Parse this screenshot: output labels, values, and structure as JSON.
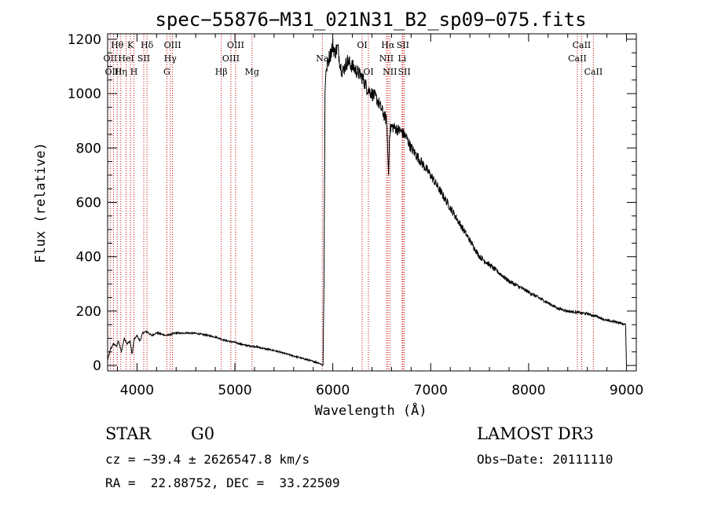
{
  "chart_data": {
    "type": "line",
    "title": "spec−55876−M31_021N31_B2_sp09−075.fits",
    "xlabel": "Wavelength (Å)",
    "ylabel": "Flux (relative)",
    "xlim": [
      3700,
      9100
    ],
    "ylim": [
      -20,
      1220
    ],
    "xticks": [
      4000,
      5000,
      6000,
      7000,
      8000,
      9000
    ],
    "xtick_labels": [
      "4000",
      "5000",
      "6000",
      "7000",
      "8000",
      "9000"
    ],
    "yticks": [
      0,
      200,
      400,
      600,
      800,
      1000,
      1200
    ],
    "ytick_labels": [
      "0",
      "200",
      "400",
      "600",
      "800",
      "1000",
      "1200"
    ],
    "series": [
      {
        "name": "flux",
        "x": [
          3700,
          3730,
          3760,
          3790,
          3810,
          3840,
          3870,
          3900,
          3930,
          3950,
          3970,
          4000,
          4030,
          4060,
          4100,
          4150,
          4200,
          4250,
          4300,
          4350,
          4400,
          4450,
          4500,
          4600,
          4700,
          4800,
          4900,
          5000,
          5100,
          5200,
          5300,
          5400,
          5500,
          5600,
          5700,
          5800,
          5850,
          5880,
          5900,
          5910,
          5920,
          5930,
          5940,
          5960,
          5980,
          6000,
          6020,
          6050,
          6080,
          6100,
          6150,
          6200,
          6250,
          6300,
          6350,
          6400,
          6450,
          6500,
          6550,
          6570,
          6580,
          6600,
          6650,
          6700,
          6750,
          6800,
          6900,
          7000,
          7100,
          7200,
          7300,
          7400,
          7500,
          7600,
          7700,
          7800,
          7900,
          8000,
          8100,
          8200,
          8300,
          8400,
          8500,
          8600,
          8700,
          8800,
          8900,
          8990,
          9000
        ],
        "y": [
          20,
          60,
          80,
          70,
          90,
          50,
          100,
          80,
          90,
          40,
          95,
          110,
          90,
          120,
          125,
          110,
          120,
          115,
          110,
          115,
          120,
          118,
          120,
          118,
          112,
          105,
          92,
          85,
          75,
          70,
          62,
          55,
          45,
          35,
          25,
          15,
          10,
          5,
          0,
          300,
          1000,
          1080,
          1100,
          1130,
          1150,
          1180,
          1150,
          1170,
          1100,
          1080,
          1120,
          1100,
          1080,
          1060,
          1020,
          1000,
          980,
          940,
          900,
          700,
          860,
          880,
          870,
          860,
          840,
          800,
          750,
          700,
          640,
          580,
          520,
          460,
          400,
          370,
          340,
          310,
          290,
          270,
          250,
          230,
          210,
          200,
          195,
          190,
          180,
          165,
          160,
          150,
          0
        ]
      }
    ],
    "spectral_lines": [
      {
        "name": "Hθ",
        "wavelength": 3798,
        "row": 1
      },
      {
        "name": "OII",
        "wavelength": 3727,
        "row": 2
      },
      {
        "name": "OIII",
        "wavelength": 3760,
        "row": 3
      },
      {
        "name": "K",
        "wavelength": 3934,
        "row": 1
      },
      {
        "name": "HeI",
        "wavelength": 3889,
        "row": 2
      },
      {
        "name": "Hη",
        "wavelength": 3835,
        "row": 3
      },
      {
        "name": "SII",
        "wavelength": 4069,
        "row": 2
      },
      {
        "name": "H",
        "wavelength": 3969,
        "row": 3
      },
      {
        "name": "Hδ",
        "wavelength": 4102,
        "row": 1
      },
      {
        "name": "OIII",
        "wavelength": 4363,
        "row": 1
      },
      {
        "name": "Hγ",
        "wavelength": 4340,
        "row": 2
      },
      {
        "name": "G",
        "wavelength": 4305,
        "row": 3
      },
      {
        "name": "OIII",
        "wavelength": 5007,
        "row": 1
      },
      {
        "name": "OIII",
        "wavelength": 4959,
        "row": 2
      },
      {
        "name": "Hβ",
        "wavelength": 4861,
        "row": 3
      },
      {
        "name": "Mg",
        "wavelength": 5175,
        "row": 3
      },
      {
        "name": "Na",
        "wavelength": 5893,
        "row": 2
      },
      {
        "name": "OI",
        "wavelength": 6300,
        "row": 1
      },
      {
        "name": "OI",
        "wavelength": 6364,
        "row": 3
      },
      {
        "name": "Hα",
        "wavelength": 6563,
        "row": 1
      },
      {
        "name": "SII",
        "wavelength": 6716,
        "row": 1
      },
      {
        "name": "NII",
        "wavelength": 6548,
        "row": 2
      },
      {
        "name": "Li",
        "wavelength": 6708,
        "row": 2
      },
      {
        "name": "NII",
        "wavelength": 6583,
        "row": 3
      },
      {
        "name": "SII",
        "wavelength": 6731,
        "row": 3
      },
      {
        "name": "CaII",
        "wavelength": 8542,
        "row": 1
      },
      {
        "name": "CaII",
        "wavelength": 8498,
        "row": 2
      },
      {
        "name": "CaII",
        "wavelength": 8662,
        "row": 3
      }
    ]
  },
  "info": {
    "class": "STAR",
    "subclass": "G0",
    "survey": "LAMOST DR3",
    "cz": "cz = −39.4 ± 2626547.8 km/s",
    "obs_date": "Obs−Date: 20111110",
    "radec": "RA =  22.88752, DEC =  33.22509"
  },
  "colors": {
    "line_marker": "#cc0000",
    "spectrum": "#000000"
  }
}
